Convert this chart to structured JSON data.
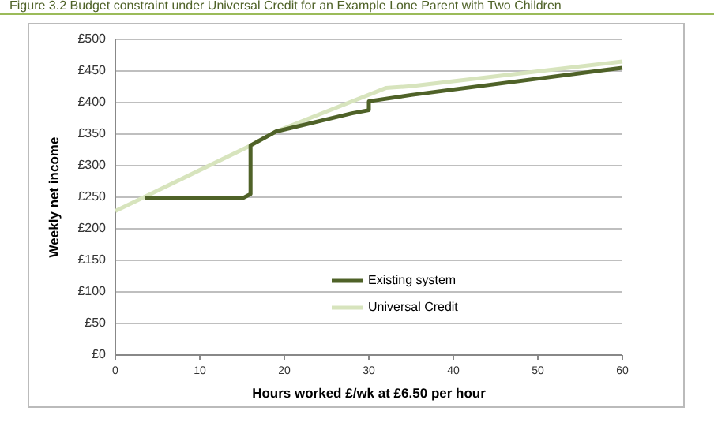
{
  "chart_data": {
    "type": "line",
    "title": "Figure 3.2    Budget constraint under Universal Credit for an Example Lone Parent with Two Children",
    "xlabel": "Hours worked £/wk at £6.50 per hour",
    "ylabel": "Weekly net income",
    "xlim": [
      0,
      60
    ],
    "xticks": [
      0,
      10,
      20,
      30,
      40,
      50,
      60
    ],
    "ylim": [
      0,
      500
    ],
    "yticks": [
      {
        "value": 0,
        "label": "£0"
      },
      {
        "value": 50,
        "label": "£50"
      },
      {
        "value": 100,
        "label": "£100"
      },
      {
        "value": 150,
        "label": "£150"
      },
      {
        "value": 200,
        "label": "£200"
      },
      {
        "value": 250,
        "label": "£250"
      },
      {
        "value": 300,
        "label": "£300"
      },
      {
        "value": 350,
        "label": "£350"
      },
      {
        "value": 400,
        "label": "£400"
      },
      {
        "value": 450,
        "label": "£450"
      },
      {
        "value": 500,
        "label": "£500"
      }
    ],
    "grid": "y",
    "legend": "bottom",
    "marker": "none",
    "series": [
      {
        "name": "Existing system",
        "color": "#4f6228",
        "x": [
          3.5,
          15,
          16,
          16,
          19,
          28,
          30,
          30,
          35,
          60
        ],
        "values": [
          248,
          248,
          255,
          332,
          354,
          383,
          388,
          402,
          412,
          455
        ]
      },
      {
        "name": "Universal Credit",
        "color": "#d7e4bd",
        "x": [
          0,
          16,
          19,
          32,
          35,
          60
        ],
        "values": [
          228,
          332,
          354,
          423,
          426,
          465
        ]
      }
    ]
  }
}
